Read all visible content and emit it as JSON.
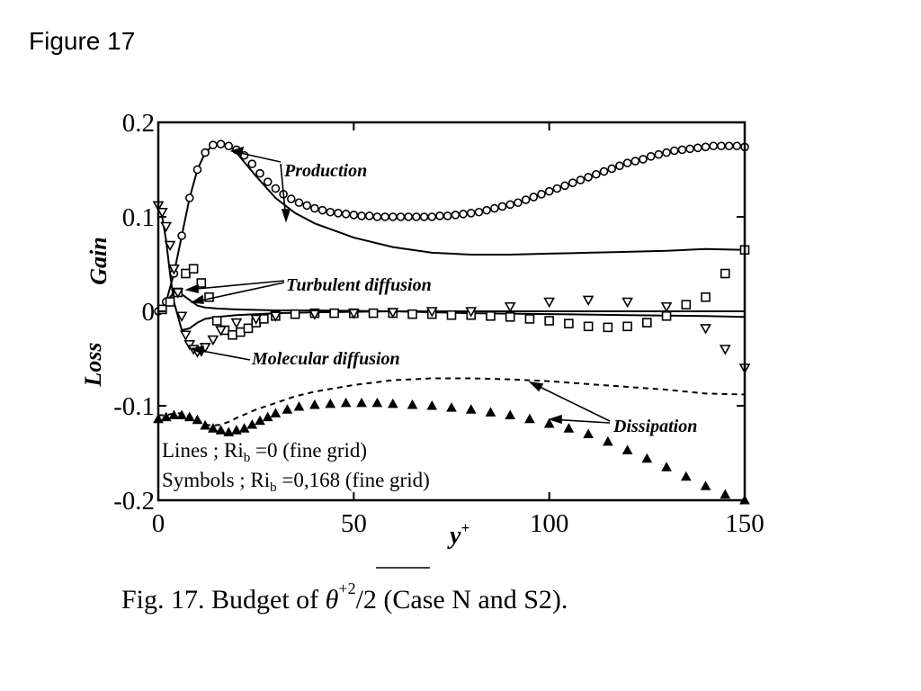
{
  "slide_title": "Figure 17",
  "chart_data": {
    "type": "line",
    "xlabel": "y",
    "xlabel_sup": "+",
    "ylabel_gain": "Gain",
    "ylabel_loss": "Loss",
    "xlim": [
      0,
      150
    ],
    "ylim": [
      -0.2,
      0.2
    ],
    "x_ticks": [
      0,
      50,
      100,
      150
    ],
    "x_tick_labels": [
      "0",
      "50",
      "100",
      "150"
    ],
    "y_ticks": [
      0.2,
      0.1,
      0,
      -0.1,
      -0.2
    ],
    "y_tick_labels": [
      "0.2",
      "0.1",
      "0",
      "-0.1",
      "-0.2"
    ],
    "grid": false,
    "annotations": [
      "Production",
      "Turbulent diffusion",
      "Molecular diffusion",
      "Dissipation"
    ],
    "legend_lines": {
      "prefix": "Lines ; Ri",
      "sub": "b",
      "suffix": " =0 (fine grid)"
    },
    "legend_symbols": {
      "prefix": "Symbols ; Ri",
      "sub": "b",
      "suffix": " =0,168 (fine grid)"
    },
    "caption": {
      "prefix": "Fig.  17. Budget of ",
      "theta": "θ",
      "sup": "+2",
      "suffix": "/2 (Case N and S2)."
    },
    "series": [
      {
        "style": "solid",
        "x": [
          0,
          2,
          4,
          6,
          8,
          10,
          12,
          14,
          16,
          18,
          20,
          22,
          25,
          30,
          35,
          40,
          50,
          60,
          70,
          80,
          90,
          100,
          110,
          120,
          130,
          140,
          150
        ],
        "y": [
          0,
          0.01,
          0.04,
          0.08,
          0.12,
          0.15,
          0.168,
          0.176,
          0.178,
          0.175,
          0.168,
          0.158,
          0.143,
          0.12,
          0.104,
          0.093,
          0.078,
          0.068,
          0.062,
          0.06,
          0.06,
          0.061,
          0.062,
          0.063,
          0.064,
          0.066,
          0.065
        ]
      },
      {
        "style": "solid",
        "x": [
          0,
          2,
          4,
          6,
          8,
          10,
          12,
          15,
          20,
          30,
          40,
          60,
          80,
          100,
          120,
          140,
          150
        ],
        "y": [
          0,
          0.01,
          0.02,
          0.018,
          0.012,
          0.006,
          0.004,
          0.003,
          0.002,
          0.001,
          0.001,
          0.0,
          -0.002,
          -0.003,
          -0.004,
          -0.005,
          -0.006
        ]
      },
      {
        "style": "solid",
        "x": [
          0,
          1,
          2,
          3,
          4,
          6,
          8,
          10,
          12,
          15,
          20,
          30,
          40,
          60,
          80,
          100,
          120,
          140,
          150
        ],
        "y": [
          0.115,
          0.1,
          0.075,
          0.04,
          0.01,
          -0.02,
          -0.018,
          -0.012,
          -0.008,
          -0.006,
          -0.004,
          -0.002,
          -0.001,
          0.0,
          0.0,
          0.0,
          0.0,
          0.0,
          0.0
        ]
      },
      {
        "style": "dashed",
        "x": [
          0,
          2,
          4,
          6,
          8,
          10,
          12,
          14,
          16,
          18,
          20,
          25,
          30,
          35,
          40,
          50,
          60,
          70,
          80,
          90,
          100,
          110,
          120,
          130,
          140,
          150
        ],
        "y": [
          -0.11,
          -0.11,
          -0.108,
          -0.108,
          -0.111,
          -0.115,
          -0.12,
          -0.121,
          -0.12,
          -0.117,
          -0.113,
          -0.104,
          -0.097,
          -0.09,
          -0.085,
          -0.078,
          -0.073,
          -0.071,
          -0.071,
          -0.072,
          -0.074,
          -0.077,
          -0.08,
          -0.083,
          -0.087,
          -0.088
        ]
      },
      {
        "style": "marker",
        "marker": "circle",
        "x": [
          0,
          2,
          4,
          6,
          8,
          10,
          12,
          14,
          16,
          18,
          20,
          22,
          24,
          26,
          28,
          30,
          32,
          34,
          36,
          38,
          40,
          42,
          44,
          46,
          48,
          50,
          52,
          54,
          56,
          58,
          60,
          62,
          64,
          66,
          68,
          70,
          72,
          74,
          76,
          78,
          80,
          82,
          84,
          86,
          88,
          90,
          92,
          94,
          96,
          98,
          100,
          102,
          104,
          106,
          108,
          110,
          112,
          114,
          116,
          118,
          120,
          122,
          124,
          126,
          128,
          130,
          132,
          134,
          136,
          138,
          140,
          142,
          144,
          146,
          148,
          150
        ],
        "y": [
          0,
          0.01,
          0.04,
          0.08,
          0.12,
          0.15,
          0.168,
          0.176,
          0.177,
          0.175,
          0.171,
          0.165,
          0.156,
          0.146,
          0.137,
          0.13,
          0.124,
          0.119,
          0.115,
          0.112,
          0.109,
          0.107,
          0.105,
          0.104,
          0.103,
          0.102,
          0.101,
          0.101,
          0.1,
          0.1,
          0.1,
          0.1,
          0.1,
          0.1,
          0.1,
          0.1,
          0.101,
          0.101,
          0.102,
          0.103,
          0.104,
          0.105,
          0.107,
          0.109,
          0.111,
          0.113,
          0.115,
          0.118,
          0.121,
          0.124,
          0.127,
          0.13,
          0.133,
          0.136,
          0.139,
          0.142,
          0.145,
          0.148,
          0.151,
          0.154,
          0.157,
          0.159,
          0.161,
          0.164,
          0.166,
          0.168,
          0.17,
          0.171,
          0.172,
          0.173,
          0.174,
          0.175,
          0.175,
          0.175,
          0.175,
          0.174
        ]
      },
      {
        "style": "marker",
        "marker": "square",
        "x": [
          1,
          3,
          5,
          7,
          9,
          11,
          13,
          15,
          17,
          19,
          21,
          23,
          25,
          27,
          30,
          35,
          40,
          45,
          50,
          55,
          60,
          65,
          70,
          75,
          80,
          85,
          90,
          95,
          100,
          105,
          110,
          115,
          120,
          125,
          130,
          135,
          140,
          145,
          150
        ],
        "y": [
          0.002,
          0.01,
          0.02,
          0.04,
          0.045,
          0.03,
          0.015,
          -0.01,
          -0.02,
          -0.025,
          -0.022,
          -0.018,
          -0.012,
          -0.008,
          -0.005,
          -0.003,
          -0.002,
          -0.002,
          -0.002,
          -0.002,
          -0.002,
          -0.003,
          -0.003,
          -0.004,
          -0.004,
          -0.005,
          -0.006,
          -0.008,
          -0.01,
          -0.013,
          -0.016,
          -0.017,
          -0.016,
          -0.012,
          -0.005,
          0.007,
          0.015,
          0.04,
          0.065
        ]
      },
      {
        "style": "marker",
        "marker": "triangle-down",
        "x": [
          0,
          1,
          2,
          3,
          4,
          5,
          6,
          7,
          8,
          9,
          10,
          11,
          12,
          14,
          16,
          20,
          25,
          30,
          40,
          50,
          60,
          70,
          80,
          90,
          100,
          110,
          120,
          130,
          140,
          145,
          150
        ],
        "y": [
          0.112,
          0.105,
          0.09,
          0.07,
          0.045,
          0.02,
          -0.005,
          -0.025,
          -0.035,
          -0.04,
          -0.043,
          -0.042,
          -0.038,
          -0.03,
          -0.02,
          -0.012,
          -0.008,
          -0.005,
          -0.003,
          -0.002,
          -0.001,
          0.0,
          0.0,
          0.005,
          0.01,
          0.012,
          0.01,
          0.005,
          -0.018,
          -0.04,
          -0.06
        ]
      },
      {
        "style": "marker",
        "marker": "triangle-up",
        "x": [
          0,
          2,
          4,
          6,
          8,
          10,
          12,
          14,
          16,
          18,
          20,
          22,
          24,
          26,
          28,
          30,
          33,
          36,
          40,
          44,
          48,
          52,
          56,
          60,
          65,
          70,
          75,
          80,
          85,
          90,
          95,
          100,
          105,
          110,
          115,
          120,
          125,
          130,
          135,
          140,
          145,
          150
        ],
        "y": [
          -0.114,
          -0.112,
          -0.11,
          -0.11,
          -0.112,
          -0.115,
          -0.121,
          -0.124,
          -0.126,
          -0.128,
          -0.126,
          -0.124,
          -0.12,
          -0.116,
          -0.112,
          -0.108,
          -0.104,
          -0.101,
          -0.099,
          -0.098,
          -0.097,
          -0.097,
          -0.097,
          -0.098,
          -0.099,
          -0.1,
          -0.102,
          -0.104,
          -0.107,
          -0.11,
          -0.114,
          -0.119,
          -0.124,
          -0.13,
          -0.138,
          -0.147,
          -0.156,
          -0.165,
          -0.175,
          -0.185,
          -0.194,
          -0.2
        ]
      }
    ]
  }
}
